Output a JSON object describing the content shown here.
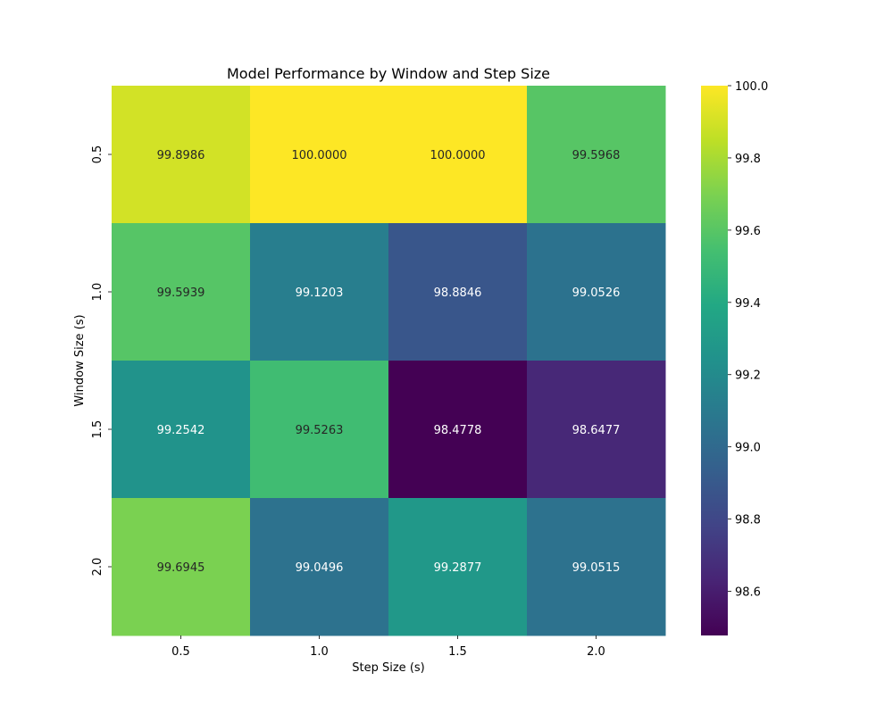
{
  "chart_data": {
    "type": "heatmap",
    "title": "Model Performance by Window and Step Size",
    "xlabel": "Step Size (s)",
    "ylabel": "Window Size (s)",
    "x_categories": [
      "0.5",
      "1.0",
      "1.5",
      "2.0"
    ],
    "y_categories": [
      "0.5",
      "1.0",
      "1.5",
      "2.0"
    ],
    "values": [
      [
        99.8986,
        100.0,
        100.0,
        99.5968
      ],
      [
        99.5939,
        99.1203,
        98.8846,
        99.0526
      ],
      [
        99.2542,
        99.5263,
        98.4778,
        98.6477
      ],
      [
        99.6945,
        99.0496,
        99.2877,
        99.0515
      ]
    ],
    "value_labels": [
      [
        "99.8986",
        "100.0000",
        "100.0000",
        "99.5968"
      ],
      [
        "99.5939",
        "99.1203",
        "98.8846",
        "99.0526"
      ],
      [
        "99.2542",
        "99.5263",
        "98.4778",
        "98.6477"
      ],
      [
        "99.6945",
        "99.0496",
        "99.2877",
        "99.0515"
      ]
    ],
    "colormap": "viridis",
    "vmin": 98.4778,
    "vmax": 100.0,
    "colorbar_ticks": [
      "98.6",
      "98.8",
      "99.0",
      "99.2",
      "99.4",
      "99.6",
      "99.8",
      "100.0"
    ],
    "grid": false,
    "legend": "colorbar-right"
  }
}
